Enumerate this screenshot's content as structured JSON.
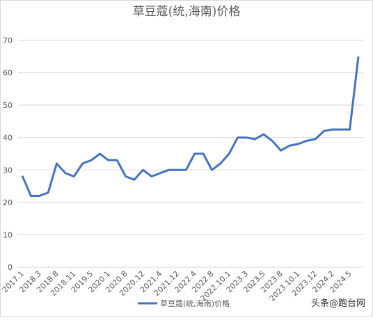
{
  "chart_data": {
    "type": "line",
    "title": "草豆蔻(统,海南)价格",
    "categories": [
      "2017.1",
      null,
      "2018.3",
      null,
      "2018.8",
      null,
      "2018.11",
      null,
      "2019.5",
      null,
      "2020.1",
      null,
      "2020.8",
      null,
      "2020.12",
      null,
      "2021.4",
      null,
      "2021.12",
      null,
      "2022.4",
      null,
      "2022.8",
      null,
      "2022.10.1",
      null,
      "2023.3",
      null,
      "2023.5",
      null,
      "2023.8",
      null,
      "2023.10.1",
      null,
      "2023.12",
      null,
      "2024.2",
      null,
      "2024.5",
      null
    ],
    "series": [
      {
        "name": "草豆蔻(统,海南)价格",
        "color": "#4472c4",
        "values": [
          28.2,
          22,
          22,
          23,
          32,
          29,
          28,
          32,
          33,
          35,
          33,
          33,
          28,
          27,
          30,
          28,
          29,
          30,
          30,
          30,
          35,
          35,
          30,
          32,
          35,
          40,
          40,
          39.5,
          41,
          39,
          36,
          37.5,
          38,
          39,
          39.5,
          42,
          42.5,
          42.5,
          42.5,
          65
        ]
      }
    ],
    "ylim": [
      0,
      70
    ],
    "yticks": [
      0,
      10,
      20,
      30,
      40,
      50,
      60,
      70
    ],
    "grid": true,
    "legend": "bottom",
    "watermark": "头条@跑台网"
  }
}
